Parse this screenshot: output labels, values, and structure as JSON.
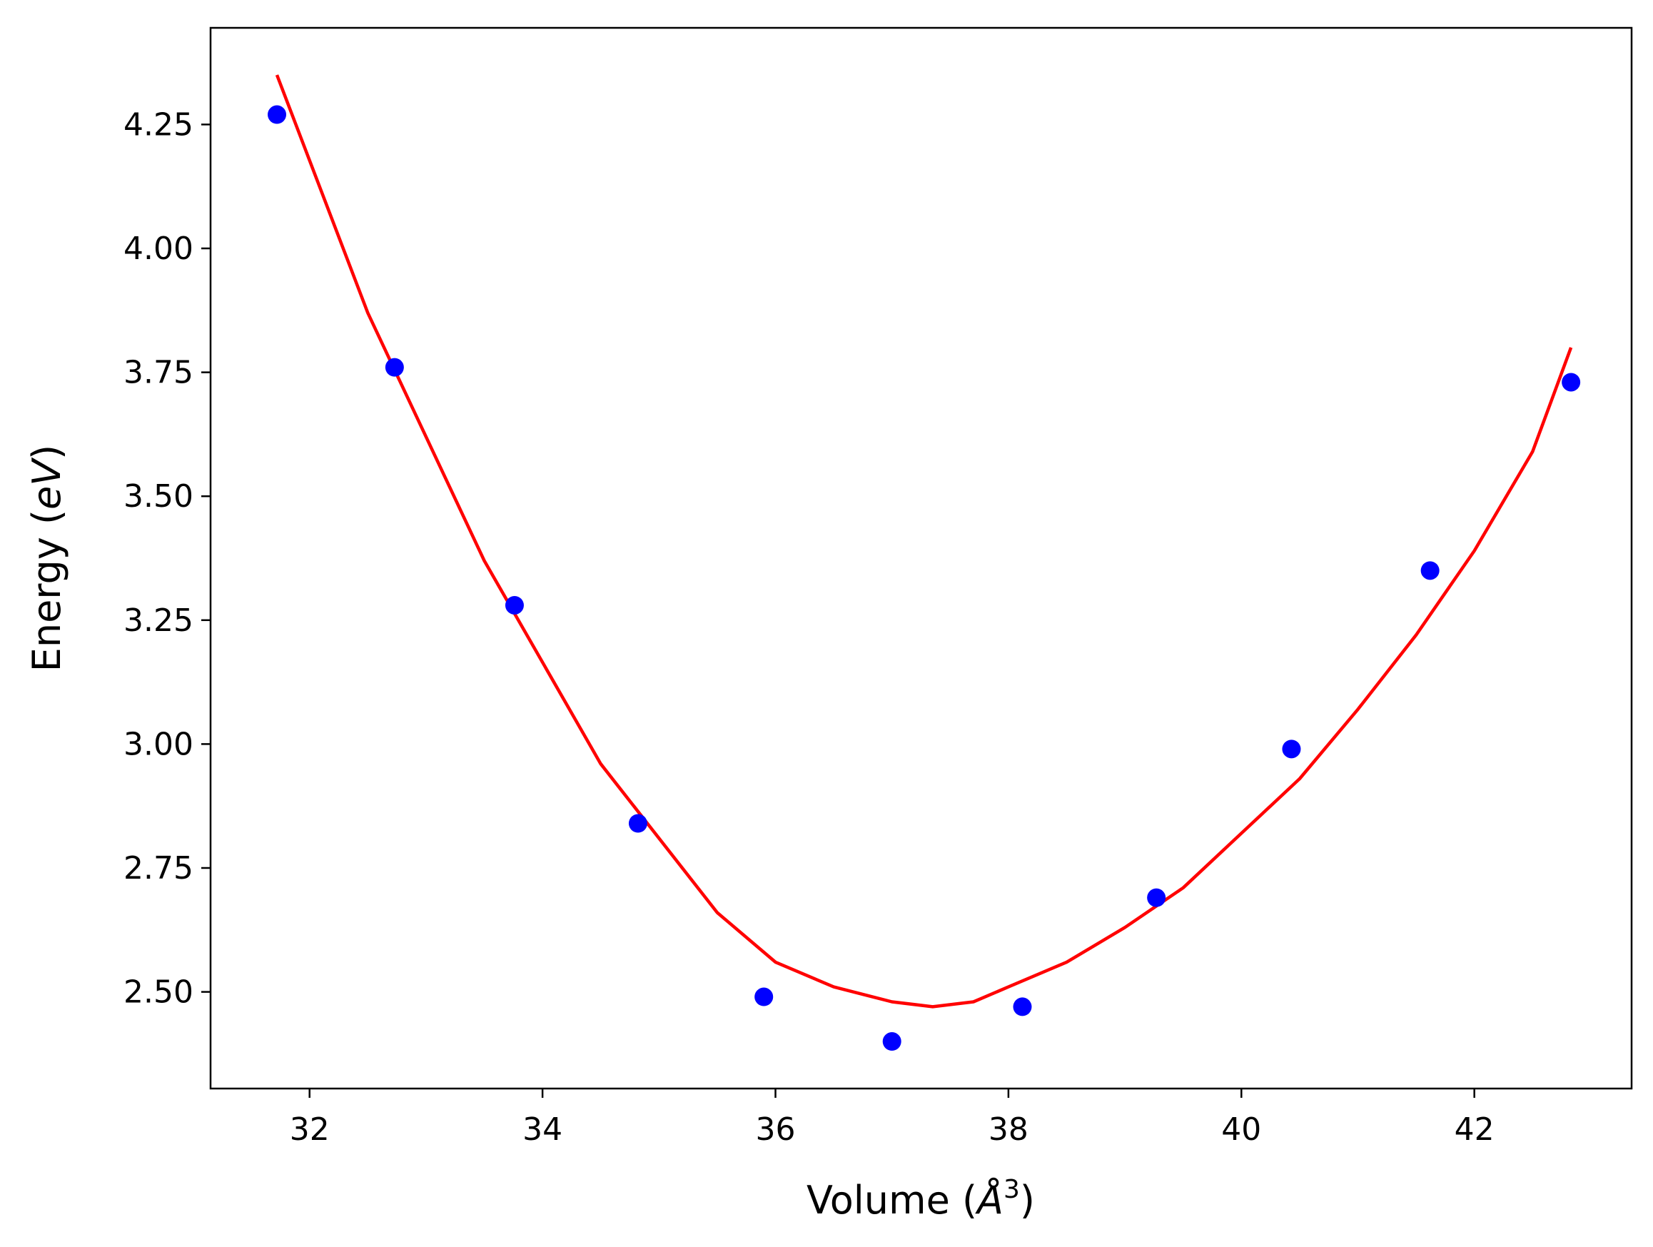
{
  "chart_data": {
    "type": "scatter",
    "title": "",
    "xlabel": {
      "prefix": "Volume (",
      "symbol": "Å",
      "superscript": "3",
      "suffix": ")"
    },
    "ylabel": {
      "prefix": "Energy (",
      "symbol": "eV",
      "suffix": ")"
    },
    "xlim": [
      31.15,
      43.35
    ],
    "ylim": [
      2.305,
      4.445
    ],
    "grid": false,
    "legend": "none",
    "xticks": [
      32,
      34,
      36,
      38,
      40,
      42
    ],
    "xtick_labels": [
      "32",
      "34",
      "36",
      "38",
      "40",
      "42"
    ],
    "yticks": [
      2.5,
      2.75,
      3.0,
      3.25,
      3.5,
      3.75,
      4.0,
      4.25
    ],
    "ytick_labels": [
      "2.50",
      "2.75",
      "3.00",
      "3.25",
      "3.50",
      "3.75",
      "4.00",
      "4.25"
    ],
    "series": [
      {
        "kind": "scatter",
        "color": "#0000ff",
        "x": [
          31.72,
          32.73,
          33.76,
          34.82,
          35.9,
          37.0,
          38.12,
          39.27,
          40.43,
          41.62,
          42.83
        ],
        "y": [
          4.27,
          3.76,
          3.28,
          2.84,
          2.49,
          2.4,
          2.47,
          2.69,
          2.99,
          3.35,
          3.73
        ]
      },
      {
        "kind": "line",
        "color": "#ff0000",
        "x": [
          31.72,
          32.5,
          33.5,
          34.5,
          35.5,
          36.0,
          36.5,
          37.0,
          37.35,
          37.7,
          38.0,
          38.5,
          39.0,
          39.5,
          40.0,
          40.5,
          41.0,
          41.5,
          42.0,
          42.5,
          42.83
        ],
        "y": [
          4.35,
          3.87,
          3.37,
          2.96,
          2.66,
          2.56,
          2.51,
          2.48,
          2.47,
          2.48,
          2.51,
          2.56,
          2.63,
          2.71,
          2.82,
          2.93,
          3.07,
          3.22,
          3.39,
          3.59,
          3.8
        ]
      }
    ]
  }
}
